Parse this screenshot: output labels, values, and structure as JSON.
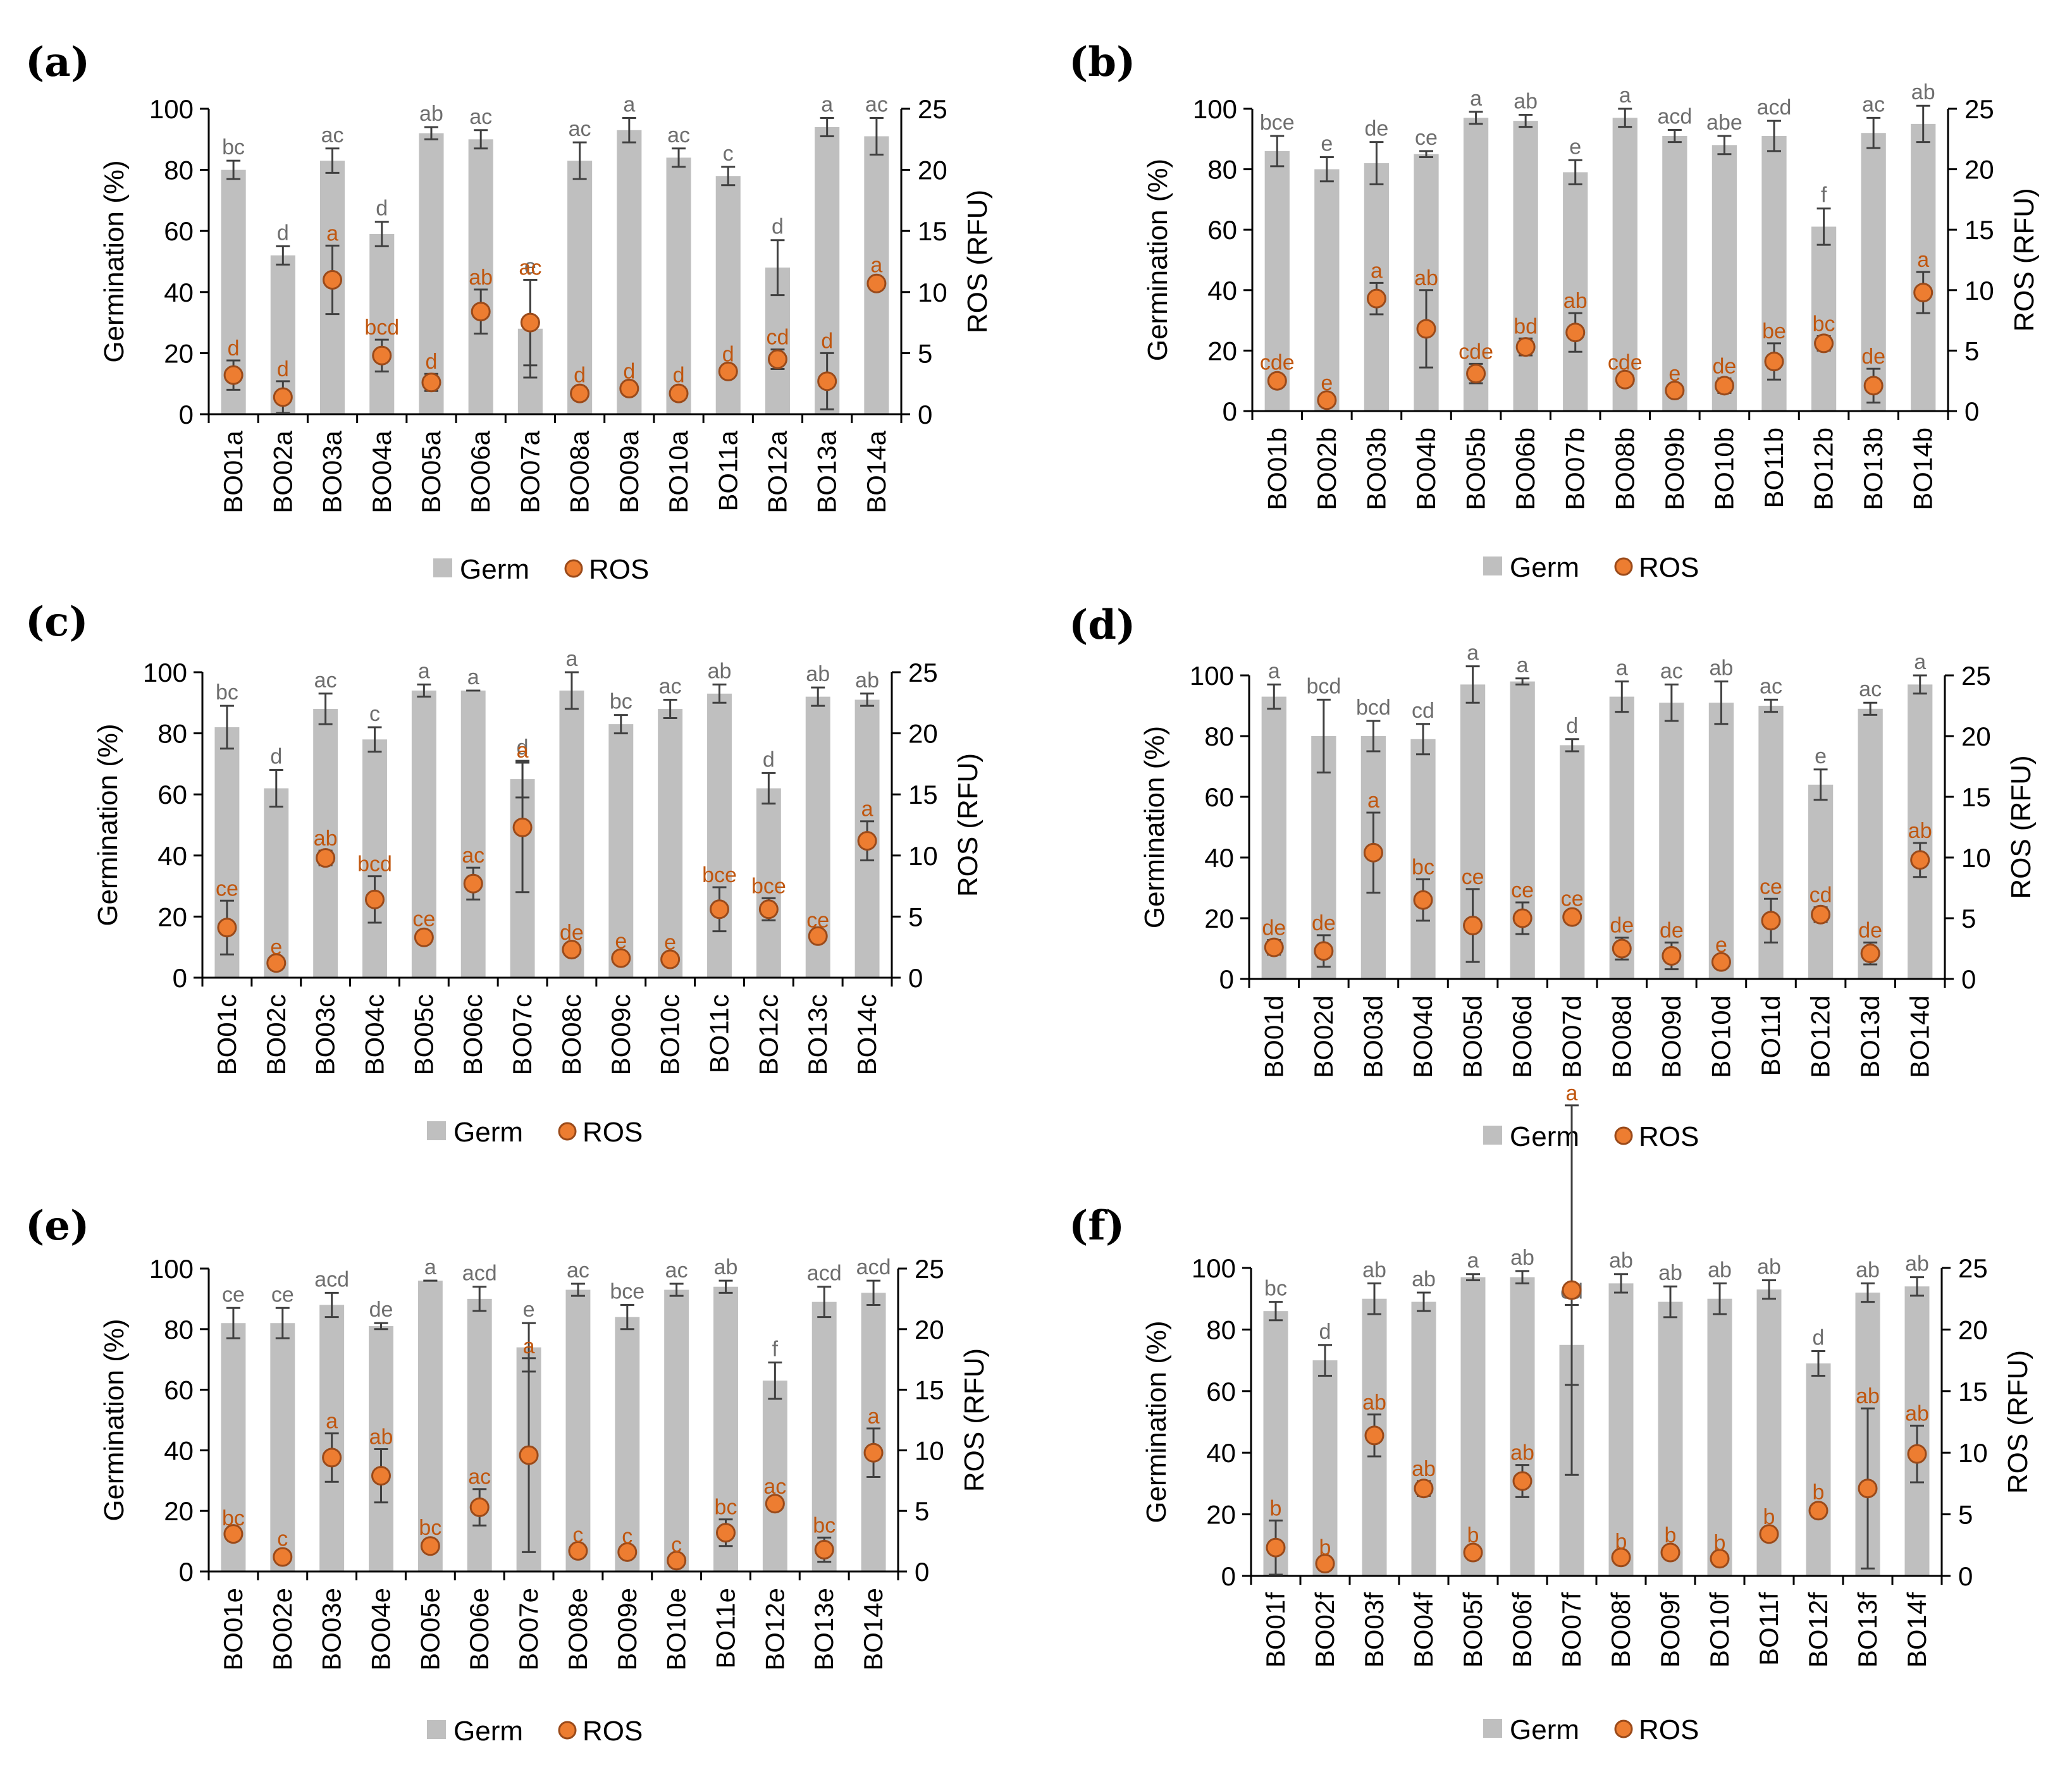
{
  "legend": {
    "germ_label": "Germ",
    "ros_label": "ROS"
  },
  "colors": {
    "bar": "#bfbfbf",
    "ros_fill": "#ed7d31",
    "ros_stroke": "#9a4a1a",
    "ros_text": "#c0560e",
    "germ_text": "#6e6e6e",
    "error": "#404040",
    "axis": "#000000"
  },
  "axes": {
    "left_title": "Germination (%)",
    "right_title": "ROS (RFU)",
    "left_ticks": [
      "0",
      "20",
      "40",
      "60",
      "80",
      "100"
    ],
    "right_ticks": [
      "0",
      "5",
      "10",
      "15",
      "20",
      "25"
    ]
  },
  "chart_data": [
    {
      "type": "bar",
      "panel": "(a)",
      "categories": [
        "BO01a",
        "BO02a",
        "BO03a",
        "BO04a",
        "BO05a",
        "BO06a",
        "BO07a",
        "BO08a",
        "BO09a",
        "BO10a",
        "BO11a",
        "BO12a",
        "BO13a",
        "BO14a"
      ],
      "ylabel": "Germination (%)",
      "y2label": "ROS (RFU)",
      "ylim": [
        0,
        100
      ],
      "y2lim": [
        0,
        25
      ],
      "series": [
        {
          "name": "Germ",
          "axis": "left",
          "values": [
            80,
            52,
            83,
            59,
            92,
            90,
            28,
            83,
            93,
            84,
            78,
            48,
            94,
            91
          ],
          "errors": [
            3,
            3,
            4,
            4,
            2,
            3,
            16,
            6,
            4,
            3,
            3,
            9,
            3,
            6
          ],
          "letters": [
            "bc",
            "d",
            "ac",
            "d",
            "ab",
            "ac",
            "e",
            "ac",
            "a",
            "ac",
            "c",
            "d",
            "a",
            "ac"
          ]
        },
        {
          "name": "ROS",
          "axis": "right",
          "values": [
            3.2,
            1.4,
            11,
            4.8,
            2.6,
            8.4,
            7.5,
            1.7,
            2.1,
            1.7,
            3.5,
            4.5,
            2.7,
            10.7
          ],
          "errors": [
            1.2,
            1.3,
            2.8,
            1.3,
            0.7,
            1.8,
            3.5,
            0.5,
            0.4,
            0.5,
            0.4,
            0.8,
            2.3,
            0.5
          ],
          "letters": [
            "d",
            "d",
            "a",
            "bcd",
            "d",
            "ab",
            "ac",
            "d",
            "d",
            "d",
            "d",
            "cd",
            "d",
            "a"
          ]
        }
      ]
    },
    {
      "type": "bar",
      "panel": "(b)",
      "categories": [
        "BO01b",
        "BO02b",
        "BO03b",
        "BO04b",
        "BO05b",
        "BO06b",
        "BO07b",
        "BO08b",
        "BO09b",
        "BO10b",
        "BO11b",
        "BO12b",
        "BO13b",
        "BO14b"
      ],
      "ylabel": "Germination (%)",
      "y2label": "ROS (RFU)",
      "ylim": [
        0,
        100
      ],
      "y2lim": [
        0,
        25
      ],
      "series": [
        {
          "name": "Germ",
          "axis": "left",
          "values": [
            86,
            80,
            82,
            85,
            97,
            96,
            79,
            97,
            91,
            88,
            91,
            61,
            92,
            95
          ],
          "errors": [
            5,
            4,
            7,
            1,
            2,
            2,
            4,
            3,
            2,
            3,
            5,
            6,
            5,
            6
          ],
          "letters": [
            "bce",
            "e",
            "de",
            "ce",
            "a",
            "ab",
            "e",
            "a",
            "acd",
            "abe",
            "acd",
            "f",
            "ac",
            "ab"
          ]
        },
        {
          "name": "ROS",
          "axis": "right",
          "values": [
            2.5,
            0.9,
            9.3,
            6.8,
            3.1,
            5.3,
            6.5,
            2.6,
            1.7,
            2.1,
            4.1,
            5.6,
            2.1,
            9.8
          ],
          "errors": [
            0.5,
            0.4,
            1.3,
            3.2,
            0.8,
            0.7,
            1.6,
            0.4,
            0.4,
            0.6,
            1.5,
            0.6,
            1.4,
            1.7
          ],
          "letters": [
            "cde",
            "e",
            "a",
            "ab",
            "cde",
            "bd",
            "ab",
            "cde",
            "e",
            "de",
            "be",
            "bc",
            "de",
            "a"
          ]
        }
      ]
    },
    {
      "type": "bar",
      "panel": "(c)",
      "categories": [
        "BO01c",
        "BO02c",
        "BO03c",
        "BO04c",
        "BO05c",
        "BO06c",
        "BO07c",
        "BO08c",
        "BO09c",
        "BO10c",
        "BO11c",
        "BO12c",
        "BO13c",
        "BO14c"
      ],
      "ylabel": "Germination (%)",
      "y2label": "ROS (RFU)",
      "ylim": [
        0,
        100
      ],
      "y2lim": [
        0,
        25
      ],
      "series": [
        {
          "name": "Germ",
          "axis": "left",
          "values": [
            82,
            62,
            88,
            78,
            94,
            94,
            65,
            94,
            83,
            88,
            93,
            62,
            92,
            91
          ],
          "errors": [
            7,
            6,
            5,
            4,
            2,
            0,
            6,
            6,
            3,
            3,
            3,
            5,
            3,
            2
          ],
          "letters": [
            "bc",
            "d",
            "ac",
            "c",
            "a",
            "a",
            "d",
            "a",
            "bc",
            "ac",
            "ab",
            "d",
            "ab",
            "ab"
          ]
        },
        {
          "name": "ROS",
          "axis": "right",
          "values": [
            4.1,
            1.2,
            9.8,
            6.4,
            3.3,
            7.7,
            12.3,
            2.3,
            1.6,
            1.5,
            5.6,
            5.6,
            3.4,
            11.2
          ],
          "errors": [
            2.2,
            0.3,
            0.6,
            1.9,
            0.5,
            1.3,
            5.3,
            0.4,
            0.4,
            0.4,
            1.8,
            0.9,
            0.3,
            1.6
          ],
          "letters": [
            "ce",
            "e",
            "ab",
            "bcd",
            "ce",
            "ac",
            "a",
            "de",
            "e",
            "e",
            "bce",
            "bce",
            "ce",
            "a"
          ]
        }
      ]
    },
    {
      "type": "bar",
      "panel": "(d)",
      "categories": [
        "BO01d",
        "BO02d",
        "BO03d",
        "BO04d",
        "BO05d",
        "BO06d",
        "BO07d",
        "BO08d",
        "BO09d",
        "BO10d",
        "BO11d",
        "BO12d",
        "BO13d",
        "BO14d"
      ],
      "ylabel": "Germination (%)",
      "y2label": "ROS (RFU)",
      "ylim": [
        0,
        100
      ],
      "y2lim": [
        0,
        25
      ],
      "series": [
        {
          "name": "Germ",
          "axis": "left",
          "values": [
            93,
            80,
            80,
            79,
            97,
            98,
            77,
            93,
            91,
            91,
            90,
            64,
            89,
            97
          ],
          "errors": [
            4,
            12,
            5,
            5,
            6,
            1,
            2,
            5,
            6,
            7,
            2,
            5,
            2,
            3
          ],
          "letters": [
            "a",
            "bcd",
            "bcd",
            "cd",
            "a",
            "a",
            "d",
            "a",
            "ac",
            "ab",
            "ac",
            "e",
            "ac",
            "a"
          ]
        },
        {
          "name": "ROS",
          "axis": "right",
          "values": [
            2.6,
            2.3,
            10.4,
            6.5,
            4.4,
            5,
            5.1,
            2.5,
            1.9,
            1.4,
            4.8,
            5.3,
            2.1,
            9.8
          ],
          "errors": [
            0.6,
            1.3,
            3.3,
            1.7,
            3,
            1.3,
            0.5,
            0.9,
            1.1,
            0.4,
            1.8,
            0.6,
            0.9,
            1.4
          ],
          "letters": [
            "de",
            "de",
            "a",
            "bc",
            "ce",
            "ce",
            "ce",
            "de",
            "de",
            "e",
            "ce",
            "cd",
            "de",
            "ab"
          ]
        }
      ]
    },
    {
      "type": "bar",
      "panel": "(e)",
      "categories": [
        "BO01e",
        "BO02e",
        "BO03e",
        "BO04e",
        "BO05e",
        "BO06e",
        "BO07e",
        "BO08e",
        "BO09e",
        "BO10e",
        "BO11e",
        "BO12e",
        "BO13e",
        "BO14e"
      ],
      "ylabel": "Germination (%)",
      "y2label": "ROS (RFU)",
      "ylim": [
        0,
        100
      ],
      "y2lim": [
        0,
        25
      ],
      "series": [
        {
          "name": "Germ",
          "axis": "left",
          "values": [
            82,
            82,
            88,
            81,
            96,
            90,
            74,
            93,
            84,
            93,
            94,
            63,
            89,
            92
          ],
          "errors": [
            5,
            5,
            4,
            1,
            0,
            4,
            8,
            2,
            4,
            2,
            2,
            6,
            5,
            4
          ],
          "letters": [
            "ce",
            "ce",
            "acd",
            "de",
            "a",
            "acd",
            "e",
            "ac",
            "bce",
            "ac",
            "ab",
            "f",
            "acd",
            "acd"
          ]
        },
        {
          "name": "ROS",
          "axis": "right",
          "values": [
            3.1,
            1.2,
            9.4,
            7.9,
            2.1,
            5.3,
            9.6,
            1.7,
            1.6,
            0.9,
            3.2,
            5.6,
            1.8,
            9.8
          ],
          "errors": [
            0.3,
            0.5,
            2,
            2.2,
            0.5,
            1.5,
            8,
            0.3,
            0.3,
            0.3,
            1.1,
            0.4,
            1,
            2
          ],
          "letters": [
            "bc",
            "c",
            "a",
            "ab",
            "bc",
            "ac",
            "a",
            "c",
            "c",
            "c",
            "bc",
            "ac",
            "bc",
            "a"
          ]
        }
      ]
    },
    {
      "type": "bar",
      "panel": "(f)",
      "categories": [
        "BO01f",
        "BO02f",
        "BO03f",
        "BO04f",
        "BO05f",
        "BO06f",
        "BO07f",
        "BO08f",
        "BO09f",
        "BO10f",
        "BO11f",
        "BO12f",
        "BO13f",
        "BO14f"
      ],
      "ylabel": "Germination (%)",
      "y2label": "ROS (RFU)",
      "ylim": [
        0,
        100
      ],
      "y2lim": [
        0,
        25
      ],
      "series": [
        {
          "name": "Germ",
          "axis": "left",
          "values": [
            86,
            70,
            90,
            89,
            97,
            97,
            75,
            95,
            89,
            90,
            93,
            69,
            92,
            94
          ],
          "errors": [
            3,
            5,
            5,
            3,
            1,
            2,
            13,
            3,
            5,
            5,
            3,
            4,
            3,
            3
          ],
          "letters": [
            "bc",
            "d",
            "ab",
            "ab",
            "a",
            "ab",
            "cd",
            "ab",
            "ab",
            "ab",
            "ab",
            "d",
            "ab",
            "ab"
          ]
        },
        {
          "name": "ROS",
          "axis": "right",
          "values": [
            2.3,
            1,
            11.4,
            7.1,
            1.9,
            7.7,
            23.2,
            1.5,
            1.9,
            1.4,
            3.4,
            5.3,
            7.1,
            9.9
          ],
          "errors": [
            2.2,
            0.3,
            1.7,
            0.6,
            0.4,
            1.3,
            15,
            0.3,
            0.4,
            0.3,
            0.4,
            0.5,
            6.5,
            2.3
          ],
          "letters": [
            "b",
            "b",
            "ab",
            "ab",
            "b",
            "ab",
            "a",
            "b",
            "b",
            "b",
            "b",
            "b",
            "ab",
            "ab"
          ]
        }
      ]
    }
  ]
}
